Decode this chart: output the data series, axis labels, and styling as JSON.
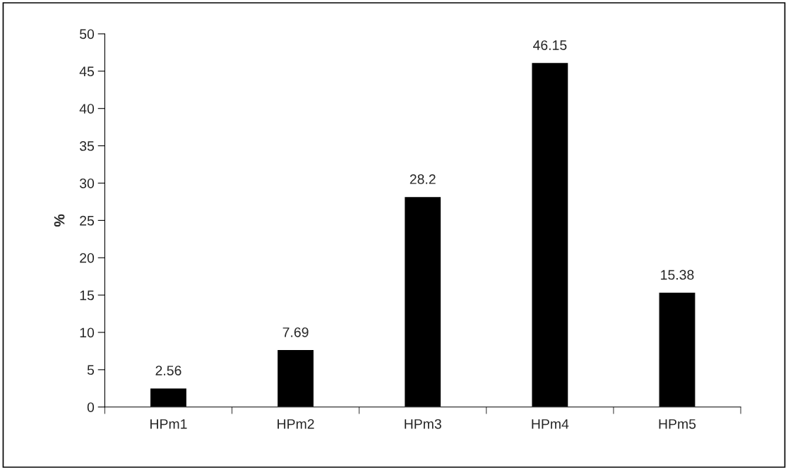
{
  "chart_data": {
    "type": "bar",
    "ylabel": "%",
    "categories": [
      "HPm1",
      "HPm2",
      "HPm3",
      "HPm4",
      "HPm5"
    ],
    "values": [
      2.56,
      7.69,
      28.2,
      46.15,
      15.38
    ],
    "color": "#000000",
    "ylim": [
      0,
      50
    ],
    "yticks": [
      0,
      5,
      10,
      15,
      20,
      25,
      30,
      35,
      40,
      45,
      50
    ],
    "data_labels": true,
    "grid": false,
    "legend": false
  }
}
